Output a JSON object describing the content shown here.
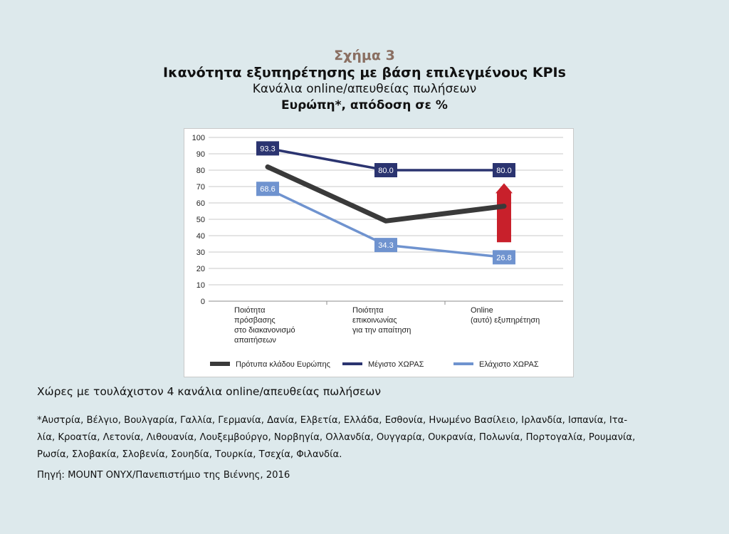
{
  "figure": {
    "number": "Σχήμα 3",
    "title": "Ικανότητα εξυπηρέτησης με βάση επιλεγμένους KPIs",
    "subtitle": "Κανάλια online/απευθείας πωλήσεων",
    "region": "Ευρώπη*, απόδοση σε %"
  },
  "chart_data": {
    "type": "line",
    "categories": [
      [
        "Ποιότητα",
        "πρόσβασης",
        "στο διακανονισμό",
        "απαιτήσεων"
      ],
      [
        "Ποιότητα",
        "επικοινωνίας",
        "για την απαίτηση"
      ],
      [
        "Online",
        "(αυτό) εξυπηρέτηση"
      ]
    ],
    "ylim": [
      0,
      100
    ],
    "yticks": [
      "0",
      "10",
      "20",
      "30",
      "40",
      "50",
      "60",
      "70",
      "80",
      "90",
      "100"
    ],
    "grid": true,
    "legend_position": "bottom",
    "series": [
      {
        "name": "Πρότυπα κλάδου Ευρώπης",
        "values": [
          82,
          49,
          58
        ],
        "color": "#3a3a3a",
        "labels": null
      },
      {
        "name": "Μέγιστο ΧΩΡΑΣ",
        "values": [
          93.3,
          80.0,
          80.0
        ],
        "color": "#2b3470",
        "labels": [
          "93.3",
          "80.0",
          "80.0"
        ]
      },
      {
        "name": "Ελάχιστο ΧΩΡΑΣ",
        "values": [
          68.6,
          34.3,
          26.8
        ],
        "color": "#6f93cf",
        "labels": [
          "68.6",
          "34.3",
          "26.8"
        ]
      }
    ],
    "annotation": {
      "type": "up-arrow",
      "color": "#c8202b",
      "x_index": 2,
      "from": 36,
      "to": 72
    }
  },
  "notes": {
    "main": "Χώρες με τουλάχιστον 4 κανάλια online/απευθείας πωλήσεων",
    "countries_line1": "*Αυστρία, Βέλγιο, Βουλγαρία, Γαλλία, Γερμανία, Δανία, Ελβετία, Ελλάδα, Εσθονία, Ηνωμένο Βασίλειο, Ιρλανδία, Ισπανία, Ιτα-",
    "countries_line2": "λία, Κροατία, Λετονία, Λιθουανία, Λουξεμβούργο, Νορβηγία, Ολλανδία, Ουγγαρία, Ουκρανία, Πολωνία, Πορτογαλία, Ρουμανία,",
    "countries_line3": "Ρωσία, Σλοβακία, Σλοβενία, Σουηδία, Τουρκία, Τσεχία, Φιλανδία.",
    "source": "Πηγή: MOUNT ONYX/Πανεπιστήμιο της Βιέννης, 2016"
  }
}
